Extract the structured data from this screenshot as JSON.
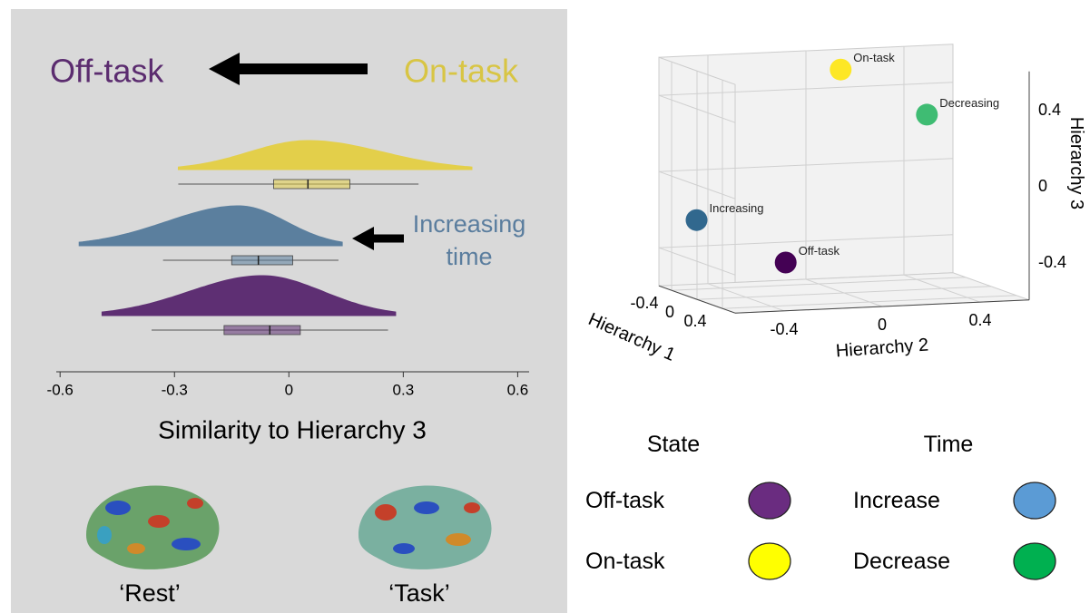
{
  "chart_data": [
    {
      "type": "raincloud",
      "xlabel": "Similarity to Hierarchy 3",
      "xlim": [
        -0.61,
        0.63
      ],
      "xticks": [
        -0.6,
        -0.3,
        0,
        0.3,
        0.6
      ],
      "series": [
        {
          "color": "#e3cf4a",
          "cloud": [
            -0.29,
            0.05,
            0.48
          ],
          "box": [
            -0.29,
            -0.04,
            0.05,
            0.16,
            0.34
          ]
        },
        {
          "color": "#5b7f9e",
          "cloud": [
            -0.55,
            -0.13,
            0.14
          ],
          "box": [
            -0.33,
            -0.15,
            -0.08,
            0.01,
            0.13
          ]
        },
        {
          "color": "#5e2f73",
          "cloud": [
            -0.49,
            -0.07,
            0.28
          ],
          "box": [
            -0.36,
            -0.17,
            -0.05,
            0.03,
            0.26
          ]
        }
      ],
      "annotations": [
        {
          "text": "Off-task",
          "color": "#5b2c6f"
        },
        {
          "text": "On-task",
          "color": "#d8c544"
        },
        {
          "text": "Increasing",
          "color": "#5a7d9e"
        },
        {
          "text": "time",
          "color": "#5a7d9e"
        }
      ],
      "panel_labels": [
        "‘Rest’",
        "‘Task’"
      ]
    },
    {
      "type": "scatter3d",
      "xlabel": "Hierarchy 1",
      "ylabel": "Hierarchy 2",
      "zlabel": "Hierarchy 3",
      "xlim": [
        -0.6,
        0.6
      ],
      "ylim": [
        -0.6,
        0.6
      ],
      "zlim": [
        -0.6,
        0.6
      ],
      "xticks": [
        -0.4,
        0,
        0.4
      ],
      "yticks": [
        -0.4,
        0,
        0.4
      ],
      "zticks": [
        -0.4,
        0,
        0.4
      ],
      "grid": true,
      "points": [
        {
          "label": "On-task",
          "color": "#fde725",
          "x": -0.4,
          "y": 0.09,
          "z": 0.52
        },
        {
          "label": "Decreasing",
          "color": "#3fbc73",
          "x": -0.2,
          "y": 0.39,
          "z": 0.29
        },
        {
          "label": "Increasing",
          "color": "#31688e",
          "x": -0.2,
          "y": -0.55,
          "z": -0.21
        },
        {
          "label": "Off-task",
          "color": "#440154",
          "x": 0.2,
          "y": -0.29,
          "z": -0.4
        }
      ],
      "legend": [
        {
          "title": "State",
          "items": [
            {
              "label": "Off-task",
              "color": "#6a2c80"
            },
            {
              "label": "On-task",
              "color": "#ffff00"
            }
          ]
        },
        {
          "title": "Time",
          "items": [
            {
              "label": "Increase",
              "color": "#5b9bd5"
            },
            {
              "label": "Decrease",
              "color": "#00b050"
            }
          ]
        }
      ]
    }
  ]
}
